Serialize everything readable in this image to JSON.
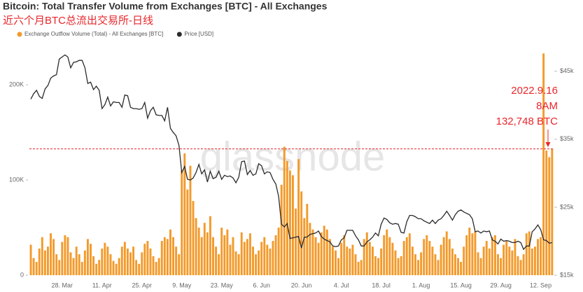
{
  "chart_data": {
    "type": "bar",
    "title": "Bitcoin: Total Transfer Volume from Exchanges [BTC] - All Exchanges",
    "subtitle": "近六个月BTC总流出交易所-日线",
    "watermark": "glassnode",
    "legend": "top-left",
    "categories": [
      null,
      null,
      null,
      null,
      null,
      null,
      null,
      null,
      null,
      null,
      null,
      "28. Mar",
      null,
      null,
      null,
      null,
      null,
      null,
      null,
      null,
      null,
      null,
      null,
      null,
      null,
      "11. Apr",
      null,
      null,
      null,
      null,
      null,
      null,
      null,
      null,
      null,
      null,
      null,
      null,
      null,
      "25. Apr",
      null,
      null,
      null,
      null,
      null,
      null,
      null,
      null,
      null,
      null,
      null,
      null,
      null,
      "9. May",
      null,
      null,
      null,
      null,
      null,
      null,
      null,
      null,
      null,
      null,
      null,
      null,
      null,
      "23. May",
      null,
      null,
      null,
      null,
      null,
      null,
      null,
      null,
      null,
      null,
      null,
      null,
      null,
      "6. Jun",
      null,
      null,
      null,
      null,
      null,
      null,
      null,
      null,
      null,
      null,
      null,
      null,
      null,
      "20. Jun",
      null,
      null,
      null,
      null,
      null,
      null,
      null,
      null,
      null,
      null,
      null,
      null,
      null,
      "4. Jul",
      null,
      null,
      null,
      null,
      null,
      null,
      null,
      null,
      null,
      null,
      null,
      null,
      null,
      "18. Jul",
      null,
      null,
      null,
      null,
      null,
      null,
      null,
      null,
      null,
      null,
      null,
      null,
      null,
      "1. Aug",
      null,
      null,
      null,
      null,
      null,
      null,
      null,
      null,
      null,
      null,
      null,
      null,
      null,
      "15. Aug",
      null,
      null,
      null,
      null,
      null,
      null,
      null,
      null,
      null,
      null,
      null,
      null,
      null,
      "29. Aug",
      null,
      null,
      null,
      null,
      null,
      null,
      null,
      null,
      null,
      null,
      null,
      null,
      null,
      "12. Sep",
      null,
      null,
      null,
      null
    ],
    "series": [
      {
        "name": "Exchange Outflow Volume (Total) - All Exchanges [BTC]",
        "type": "bar",
        "axis": "y",
        "color": "#f39a2b",
        "values": [
          32000,
          18000,
          14000,
          28000,
          40000,
          26000,
          30000,
          44000,
          38000,
          22000,
          16000,
          35000,
          42000,
          40000,
          24000,
          18000,
          30000,
          22000,
          14000,
          26000,
          38000,
          33000,
          20000,
          12000,
          16000,
          28000,
          34000,
          30000,
          22000,
          15000,
          12000,
          18000,
          30000,
          35000,
          28000,
          24000,
          30000,
          16000,
          12000,
          24000,
          33000,
          36000,
          28000,
          20000,
          14000,
          18000,
          36000,
          40000,
          38000,
          48000,
          40000,
          30000,
          22000,
          110000,
          128000,
          90000,
          115000,
          78000,
          60000,
          50000,
          40000,
          55000,
          45000,
          62000,
          40000,
          30000,
          22000,
          50000,
          42000,
          48000,
          32000,
          40000,
          25000,
          22000,
          45000,
          35000,
          38000,
          44000,
          30000,
          22000,
          26000,
          35000,
          40000,
          32000,
          28000,
          36000,
          42000,
          50000,
          95000,
          135000,
          120000,
          110000,
          105000,
          70000,
          122000,
          88000,
          60000,
          75000,
          55000,
          48000,
          40000,
          34000,
          45000,
          52000,
          48000,
          38000,
          30000,
          26000,
          18000,
          34000,
          42000,
          30000,
          28000,
          32000,
          22000,
          14000,
          16000,
          38000,
          45000,
          35000,
          30000,
          20000,
          18000,
          28000,
          42000,
          48000,
          40000,
          34000,
          26000,
          18000,
          20000,
          36000,
          40000,
          44000,
          30000,
          22000,
          16000,
          24000,
          38000,
          42000,
          36000,
          30000,
          22000,
          16000,
          32000,
          40000,
          46000,
          38000,
          28000,
          22000,
          18000,
          14000,
          30000,
          42000,
          50000,
          44000,
          46000,
          24000,
          18000,
          30000,
          36000,
          28000,
          40000,
          42000,
          22000,
          18000,
          32000,
          36000,
          30000,
          26000,
          38000,
          20000,
          16000,
          22000,
          44000,
          46000,
          28000,
          30000,
          38000,
          40000,
          233000,
          131000,
          124000,
          132748
        ]
      },
      {
        "name": "Price [USD]",
        "type": "line",
        "axis": "y2",
        "color": "#2b2b2b",
        "values": [
          40900,
          41700,
          42200,
          41300,
          41000,
          42400,
          42900,
          44000,
          44300,
          44500,
          46800,
          47100,
          47400,
          47100,
          45500,
          46300,
          46400,
          46600,
          46600,
          45500,
          43200,
          43400,
          42300,
          42800,
          42200,
          39500,
          40100,
          41200,
          39900,
          40500,
          40400,
          40400,
          39700,
          41500,
          41400,
          39700,
          39500,
          39500,
          39400,
          39500,
          40400,
          38100,
          39200,
          39700,
          38600,
          38500,
          38500,
          37700,
          39700,
          36600,
          36000,
          35500,
          34100,
          30100,
          31000,
          29100,
          29000,
          29300,
          30100,
          31300,
          29900,
          30500,
          28700,
          30300,
          29200,
          29400,
          30300,
          29100,
          29700,
          29500,
          29600,
          29300,
          28600,
          29400,
          31700,
          31800,
          29800,
          30400,
          29700,
          29900,
          31400,
          31100,
          29900,
          30200,
          30100,
          29100,
          28400,
          26600,
          22500,
          22100,
          22600,
          20400,
          20500,
          20600,
          20700,
          19000,
          20600,
          20600,
          21000,
          21100,
          21200,
          21500,
          20700,
          20300,
          20100,
          19900,
          19300,
          19200,
          19300,
          20200,
          20500,
          21600,
          21600,
          21600,
          20800,
          20200,
          19300,
          19300,
          19900,
          20200,
          20600,
          21200,
          20800,
          22500,
          23400,
          23200,
          22700,
          22500,
          22600,
          22500,
          21300,
          21200,
          22900,
          23800,
          23800,
          23600,
          23300,
          23300,
          23000,
          22800,
          22600,
          23100,
          22600,
          23100,
          23300,
          23800,
          24400,
          23800,
          23100,
          23900,
          24400,
          24600,
          24300,
          24100,
          23900,
          23300,
          21400,
          21500,
          21200,
          21500,
          21400,
          21500,
          20200,
          20000,
          19600,
          20300,
          20000,
          20100,
          20000,
          19800,
          19800,
          20000,
          19800,
          18800,
          19300,
          19300,
          21400,
          21800,
          22400,
          21700,
          20200,
          20100,
          19700,
          19800
        ]
      }
    ],
    "ylim": [
      0,
      245000
    ],
    "yticks": [
      0,
      {
        "value": 100000,
        "label": "100K"
      },
      {
        "value": 200000,
        "label": "200K"
      }
    ],
    "y2lim": [
      15000,
      49300
    ],
    "y2ticks": [
      {
        "value": 15000,
        "label": "$15k"
      },
      {
        "value": 25000,
        "label": "$25k"
      },
      {
        "value": 35000,
        "label": "$35k"
      },
      {
        "value": 45000,
        "label": "$45k"
      }
    ],
    "reference_line": {
      "value": 132748,
      "color": "#e8262b"
    },
    "annotation": {
      "lines": [
        "2022.9.16",
        "8AM",
        "132,748 BTC"
      ],
      "color": "#e8262b"
    }
  }
}
